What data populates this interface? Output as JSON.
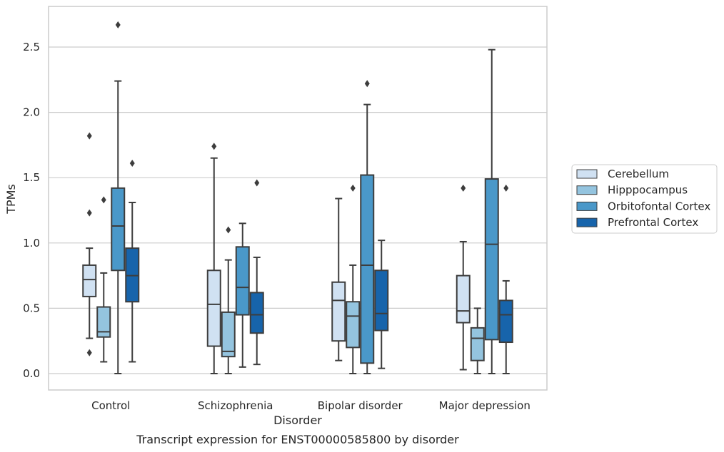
{
  "chart_data": {
    "type": "box",
    "xlabel": "Disorder",
    "ylabel": "TPMs",
    "caption": "Transcript expression for ENST00000585800 by disorder",
    "ylim": [
      -0.13,
      2.82
    ],
    "yticks": [
      0.0,
      0.5,
      1.0,
      1.5,
      2.0,
      2.5
    ],
    "ytick_labels": [
      "0.0",
      "0.5",
      "1.0",
      "1.5",
      "2.0",
      "2.5"
    ],
    "grid": "horizontal",
    "legend_position": "right",
    "categories": [
      "Control",
      "Schizophrenia",
      "Bipolar disorder",
      "Major depression"
    ],
    "series": [
      {
        "name": "Cerebellum",
        "color": "#d0e1f2",
        "boxes": [
          {
            "whisker_low": 0.27,
            "q1": 0.59,
            "median": 0.72,
            "q3": 0.83,
            "whisker_high": 0.96,
            "outliers": [
              1.82,
              1.23,
              0.16
            ]
          },
          {
            "whisker_low": 0.0,
            "q1": 0.21,
            "median": 0.53,
            "q3": 0.79,
            "whisker_high": 1.65,
            "outliers": [
              1.74
            ]
          },
          {
            "whisker_low": 0.1,
            "q1": 0.25,
            "median": 0.56,
            "q3": 0.7,
            "whisker_high": 1.34,
            "outliers": []
          },
          {
            "whisker_low": 0.03,
            "q1": 0.39,
            "median": 0.48,
            "q3": 0.75,
            "whisker_high": 1.01,
            "outliers": [
              1.42
            ]
          }
        ]
      },
      {
        "name": "Hipppocampus",
        "color": "#94c4df",
        "boxes": [
          {
            "whisker_low": 0.09,
            "q1": 0.28,
            "median": 0.32,
            "q3": 0.51,
            "whisker_high": 0.77,
            "outliers": [
              1.33
            ]
          },
          {
            "whisker_low": 0.0,
            "q1": 0.13,
            "median": 0.17,
            "q3": 0.47,
            "whisker_high": 0.87,
            "outliers": [
              1.1
            ]
          },
          {
            "whisker_low": 0.0,
            "q1": 0.2,
            "median": 0.44,
            "q3": 0.55,
            "whisker_high": 0.83,
            "outliers": [
              1.42
            ]
          },
          {
            "whisker_low": 0.0,
            "q1": 0.1,
            "median": 0.27,
            "q3": 0.35,
            "whisker_high": 0.5,
            "outliers": []
          }
        ]
      },
      {
        "name": "Orbitofontal Cortex",
        "color": "#4a98c9",
        "boxes": [
          {
            "whisker_low": 0.0,
            "q1": 0.79,
            "median": 1.13,
            "q3": 1.42,
            "whisker_high": 2.24,
            "outliers": [
              2.67
            ]
          },
          {
            "whisker_low": 0.05,
            "q1": 0.45,
            "median": 0.66,
            "q3": 0.97,
            "whisker_high": 1.15,
            "outliers": []
          },
          {
            "whisker_low": 0.0,
            "q1": 0.08,
            "median": 0.83,
            "q3": 1.52,
            "whisker_high": 2.06,
            "outliers": [
              2.22
            ]
          },
          {
            "whisker_low": 0.0,
            "q1": 0.26,
            "median": 0.99,
            "q3": 1.49,
            "whisker_high": 2.48,
            "outliers": []
          }
        ]
      },
      {
        "name": "Prefrontal Cortex",
        "color": "#1764ab",
        "boxes": [
          {
            "whisker_low": 0.09,
            "q1": 0.55,
            "median": 0.75,
            "q3": 0.96,
            "whisker_high": 1.31,
            "outliers": [
              1.61
            ]
          },
          {
            "whisker_low": 0.07,
            "q1": 0.31,
            "median": 0.45,
            "q3": 0.62,
            "whisker_high": 0.89,
            "outliers": [
              1.46
            ]
          },
          {
            "whisker_low": 0.04,
            "q1": 0.33,
            "median": 0.46,
            "q3": 0.79,
            "whisker_high": 1.02,
            "outliers": []
          },
          {
            "whisker_low": 0.0,
            "q1": 0.24,
            "median": 0.45,
            "q3": 0.56,
            "whisker_high": 0.71,
            "outliers": [
              1.42
            ]
          }
        ]
      }
    ]
  }
}
